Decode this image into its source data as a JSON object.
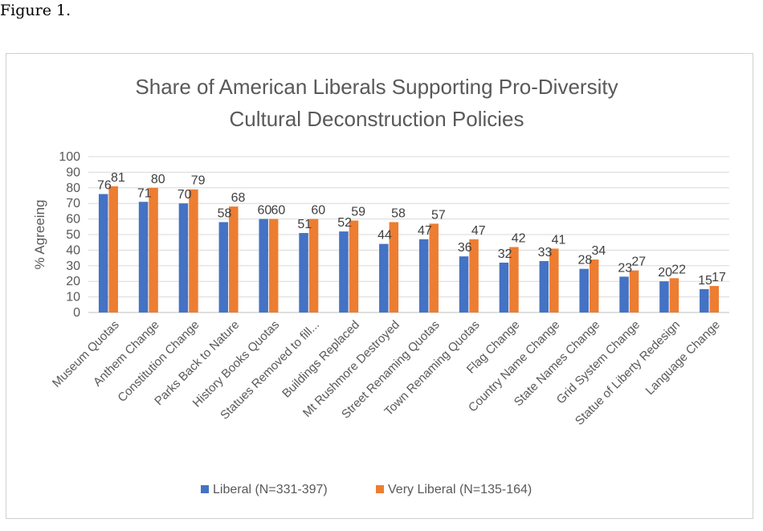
{
  "figure_caption": "Figure 1.",
  "chart_data": {
    "type": "bar",
    "title_lines": [
      "Share of American Liberals Supporting Pro-Diversity",
      "Cultural Deconstruction Policies"
    ],
    "ylabel": "% Agreeing",
    "xlabel": "",
    "ylim": [
      0,
      100
    ],
    "ytick_step": 10,
    "grid": true,
    "legend_position": "bottom",
    "categories": [
      "Museum Quotas",
      "Anthem Change",
      "Constitution Change",
      "Parks Back to Nature",
      "History Books Quotas",
      "Statues Removed to fill...",
      "Buildings Replaced",
      "Mt Rushmore Destroyed",
      "Street Renaming Quotas",
      "Town Renaming Quotas",
      "Flag Change",
      "Country Name Change",
      "State Names Change",
      "Grid System Change",
      "Statue of Liberty Redesign",
      "Language Change"
    ],
    "series": [
      {
        "name": "Liberal (N=331-397)",
        "color": "#4472c4",
        "values": [
          76,
          71,
          70,
          58,
          60,
          51,
          52,
          44,
          47,
          36,
          32,
          33,
          28,
          23,
          20,
          15
        ]
      },
      {
        "name": "Very Liberal (N=135-164)",
        "color": "#ed7d31",
        "values": [
          81,
          80,
          79,
          68,
          60,
          60,
          59,
          58,
          57,
          47,
          42,
          41,
          34,
          27,
          22,
          17
        ]
      }
    ]
  }
}
